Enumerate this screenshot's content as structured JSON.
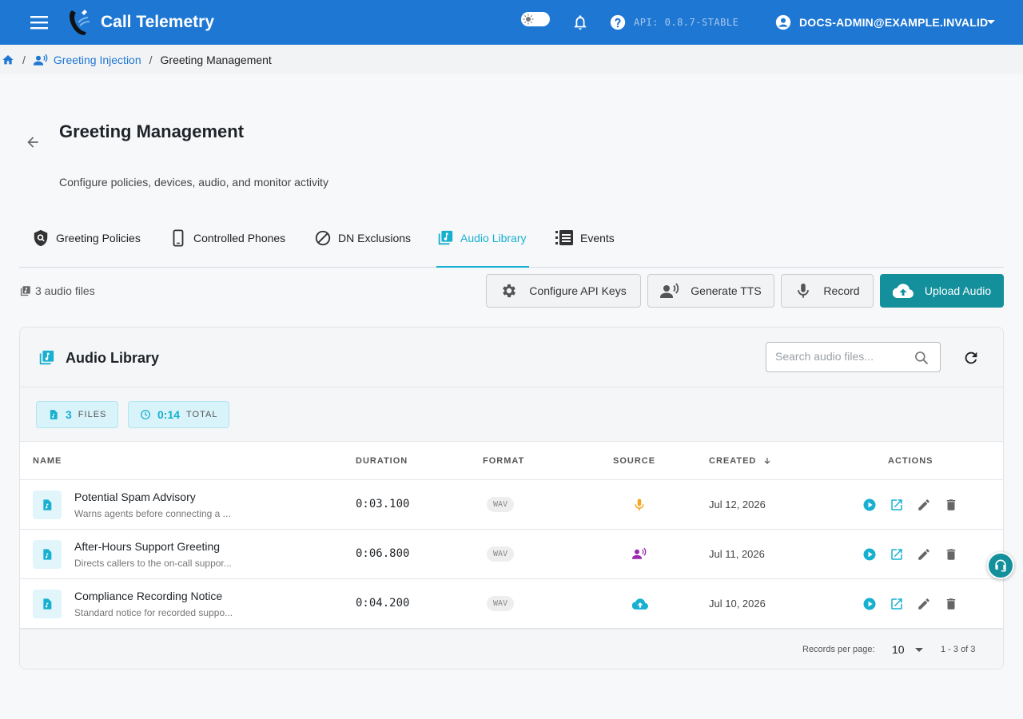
{
  "app": {
    "title": "Call Telemetry",
    "api_version": "API: 0.8.7-STABLE",
    "account": "DOCS-ADMIN@EXAMPLE.INVALID",
    "colors": {
      "topbar": "#1e77d3",
      "accent": "#17b0d0",
      "primary_button": "#13909b"
    }
  },
  "breadcrumb": {
    "parent": "Greeting Injection",
    "current": "Greeting Management"
  },
  "page": {
    "title": "Greeting Management",
    "subtitle": "Configure policies, devices, audio, and monitor activity"
  },
  "tabs": [
    {
      "label": "Greeting Policies",
      "icon": "shield-search-icon",
      "active": false
    },
    {
      "label": "Controlled Phones",
      "icon": "phone-device-icon",
      "active": false
    },
    {
      "label": "DN Exclusions",
      "icon": "block-icon",
      "active": false
    },
    {
      "label": "Audio Library",
      "icon": "library-music-icon",
      "active": true
    },
    {
      "label": "Events",
      "icon": "list-events-icon",
      "active": false
    }
  ],
  "toolbar": {
    "file_count": "3 audio files",
    "configure_api_keys": "Configure API Keys",
    "generate_tts": "Generate TTS",
    "record": "Record",
    "upload_audio": "Upload Audio"
  },
  "library": {
    "title": "Audio Library",
    "search_placeholder": "Search audio files...",
    "stats": {
      "files_value": "3",
      "files_label": "FILES",
      "total_value": "0:14",
      "total_label": "TOTAL"
    },
    "columns": {
      "name": "NAME",
      "duration": "DURATION",
      "format": "FORMAT",
      "source": "SOURCE",
      "created": "CREATED",
      "actions": "ACTIONS"
    },
    "rows": [
      {
        "name": "Potential Spam Advisory",
        "description": "Warns agents before connecting a ...",
        "duration": "0:03.100",
        "format": "WAV",
        "source": "microphone-icon",
        "source_color": "#f5a623",
        "created": "Jul 12, 2026"
      },
      {
        "name": "After-Hours Support Greeting",
        "description": "Directs callers to the on-call suppor...",
        "duration": "0:06.800",
        "format": "WAV",
        "source": "tts-voice-icon",
        "source_color": "#9c27b0",
        "created": "Jul 11, 2026"
      },
      {
        "name": "Compliance Recording Notice",
        "description": "Standard notice for recorded suppo...",
        "duration": "0:04.200",
        "format": "WAV",
        "source": "cloud-upload-icon",
        "source_color": "#17b0d0",
        "created": "Jul 10, 2026"
      }
    ],
    "footer": {
      "records_per_page_label": "Records per page:",
      "records_per_page": "10",
      "range": "1 - 3 of 3"
    }
  }
}
